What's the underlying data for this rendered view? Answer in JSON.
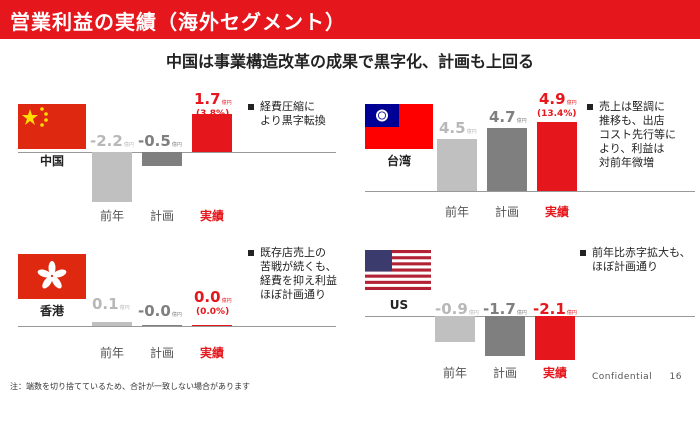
{
  "title": "営業利益の実績（海外セグメント）",
  "subtitle": "中国は事業構造改革の成果で黒字化、計画も上回る",
  "unit": "億円",
  "categories": [
    "前年",
    "計画",
    "実績"
  ],
  "regions": [
    {
      "name": "中国",
      "values": [
        "-2.2",
        "-0.5",
        "1.7"
      ],
      "pct": "(3.8%)",
      "note": [
        "経費圧縮に",
        "より黒字転換"
      ]
    },
    {
      "name": "台湾",
      "values": [
        "4.5",
        "4.7",
        "4.9"
      ],
      "pct": "(13.4%)",
      "note": [
        "売上は堅調に",
        "推移も、出店",
        "コスト先行等に",
        "より、利益は",
        "対前年微増"
      ]
    },
    {
      "name": "香港",
      "values": [
        "0.1",
        "-0.0",
        "0.0"
      ],
      "pct": "(0.0%)",
      "note": [
        "既存店売上の",
        "苦戦が続くも、",
        "経費を抑え利益",
        "ほぼ計画通り"
      ]
    },
    {
      "name": "US",
      "values": [
        "-0.9",
        "-1.7",
        "-2.1"
      ],
      "pct": "",
      "note": [
        "前年比赤字拡大も、",
        "ほぼ計画通り"
      ]
    }
  ],
  "footnote": "注：端数を切り捨てているため、合計が一致しない場合があります",
  "footer": {
    "label": "Confidential",
    "page": "16"
  },
  "colors": {
    "accent": "#e5171c",
    "prev": "#c0c0c0",
    "plan": "#7f7f7f"
  }
}
